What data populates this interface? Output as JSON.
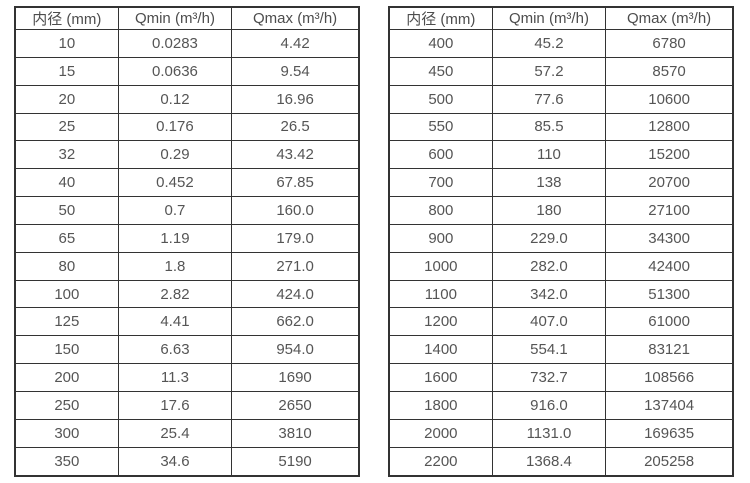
{
  "page": {
    "background_color": "#ffffff",
    "border_color": "#333333",
    "text_color": "#555555"
  },
  "tables": [
    {
      "name": "flow-table-small-diameters",
      "headers": [
        "内径 (mm)",
        "Qmin (m³/h)",
        "Qmax (m³/h)"
      ],
      "rows": [
        [
          "10",
          "0.0283",
          "4.42"
        ],
        [
          "15",
          "0.0636",
          "9.54"
        ],
        [
          "20",
          "0.12",
          "16.96"
        ],
        [
          "25",
          "0.176",
          "26.5"
        ],
        [
          "32",
          "0.29",
          "43.42"
        ],
        [
          "40",
          "0.452",
          "67.85"
        ],
        [
          "50",
          "0.7",
          "160.0"
        ],
        [
          "65",
          "1.19",
          "179.0"
        ],
        [
          "80",
          "1.8",
          "271.0"
        ],
        [
          "100",
          "2.82",
          "424.0"
        ],
        [
          "125",
          "4.41",
          "662.0"
        ],
        [
          "150",
          "6.63",
          "954.0"
        ],
        [
          "200",
          "11.3",
          "1690"
        ],
        [
          "250",
          "17.6",
          "2650"
        ],
        [
          "300",
          "25.4",
          "3810"
        ],
        [
          "350",
          "34.6",
          "5190"
        ]
      ]
    },
    {
      "name": "flow-table-large-diameters",
      "headers": [
        "内径 (mm)",
        "Qmin (m³/h)",
        "Qmax (m³/h)"
      ],
      "rows": [
        [
          "400",
          "45.2",
          "6780"
        ],
        [
          "450",
          "57.2",
          "8570"
        ],
        [
          "500",
          "77.6",
          "10600"
        ],
        [
          "550",
          "85.5",
          "12800"
        ],
        [
          "600",
          "110",
          "15200"
        ],
        [
          "700",
          "138",
          "20700"
        ],
        [
          "800",
          "180",
          "27100"
        ],
        [
          "900",
          "229.0",
          "34300"
        ],
        [
          "1000",
          "282.0",
          "42400"
        ],
        [
          "1100",
          "342.0",
          "51300"
        ],
        [
          "1200",
          "407.0",
          "61000"
        ],
        [
          "1400",
          "554.1",
          "83121"
        ],
        [
          "1600",
          "732.7",
          "108566"
        ],
        [
          "1800",
          "916.0",
          "137404"
        ],
        [
          "2000",
          "1131.0",
          "169635"
        ],
        [
          "2200",
          "1368.4",
          "205258"
        ]
      ]
    }
  ]
}
